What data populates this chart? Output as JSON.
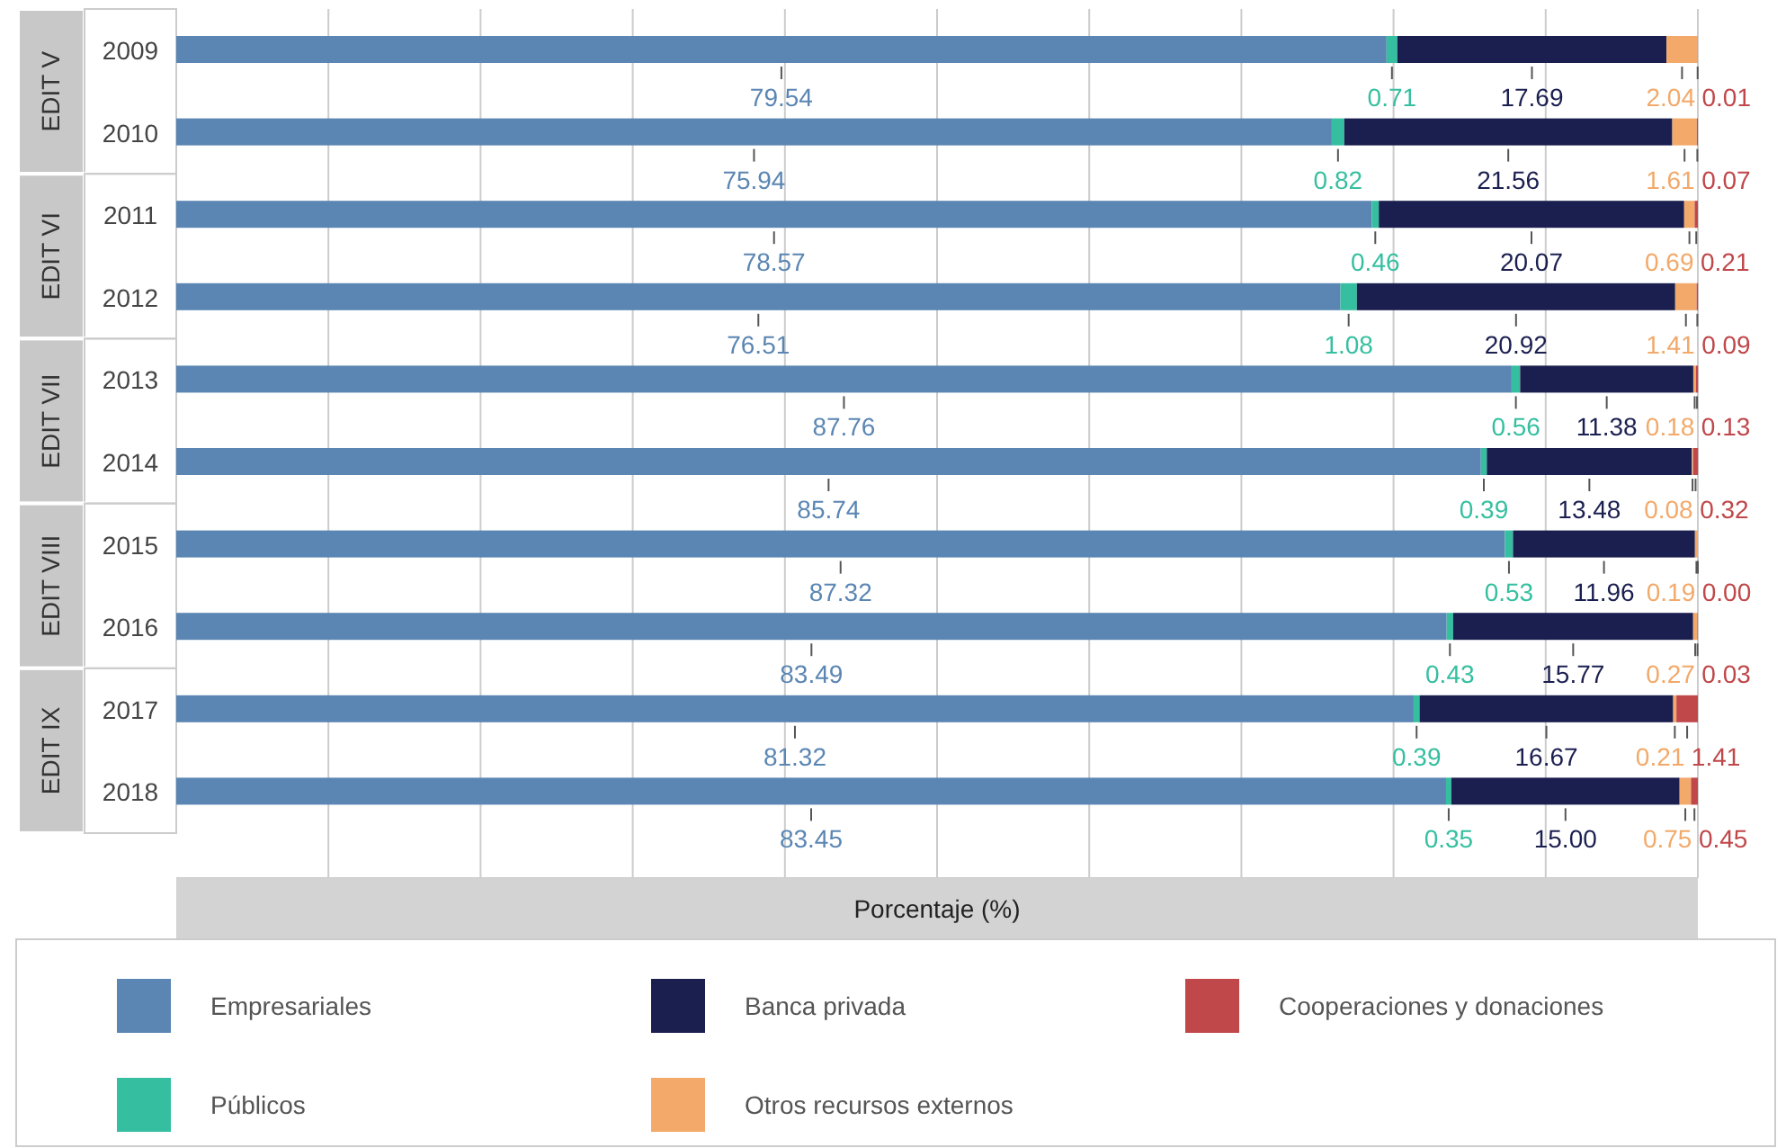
{
  "chart_data": {
    "type": "bar",
    "orientation": "horizontal",
    "stacked": true,
    "xlabel": "Porcentaje (%)",
    "categories": [
      "2009",
      "2010",
      "2011",
      "2012",
      "2013",
      "2014",
      "2015",
      "2016",
      "2017",
      "2018"
    ],
    "annotations": [
      "EDIT V",
      "EDIT VI",
      "EDIT VII",
      "EDIT VIII",
      "EDIT IX"
    ],
    "series": [
      {
        "name": "Empresariales",
        "color": "#5b86b3",
        "values": [
          79.54,
          75.94,
          78.57,
          76.51,
          87.76,
          85.74,
          87.32,
          83.49,
          81.32,
          83.45
        ],
        "value_labels": [
          "79.54",
          "75.94",
          "78.57",
          "76.51",
          "87.76",
          "85.74",
          "87.32",
          "83.49",
          "81.32",
          "83.45"
        ]
      },
      {
        "name": "Públicos",
        "color": "#35bfa0",
        "values": [
          0.71,
          0.82,
          0.46,
          1.08,
          0.56,
          0.39,
          0.53,
          0.43,
          0.39,
          0.35
        ],
        "value_labels": [
          "0.71",
          "0.82",
          "0.46",
          "1.08",
          "0.56",
          "0.39",
          "0.53",
          "0.43",
          "0.39",
          "0.35"
        ]
      },
      {
        "name": "Banca privada",
        "color": "#1b1f4f",
        "values": [
          17.69,
          21.56,
          20.07,
          20.92,
          11.38,
          13.48,
          11.96,
          15.77,
          16.67,
          15.0
        ],
        "value_labels": [
          "17.69",
          "21.56",
          "20.07",
          "20.92",
          "11.38",
          "13.48",
          "11.96",
          "15.77",
          "16.67",
          "15.00"
        ]
      },
      {
        "name": "Otros recursos externos",
        "color": "#f2a96a",
        "values": [
          2.04,
          1.61,
          0.69,
          1.41,
          0.18,
          0.08,
          0.19,
          0.27,
          0.21,
          0.75
        ],
        "value_labels": [
          "2.04",
          "1.61",
          "0.69",
          "1.41",
          "0.18",
          "0.08",
          "0.19",
          "0.27",
          "0.21",
          "0.75"
        ]
      },
      {
        "name": "Cooperaciones y donaciones",
        "color": "#c0474a",
        "values": [
          0.01,
          0.07,
          0.21,
          0.09,
          0.13,
          0.32,
          0.0,
          0.03,
          1.41,
          0.45
        ],
        "value_labels": [
          "0.01",
          "0.07",
          "0.21",
          "0.09",
          "0.13",
          "0.32",
          "0.00",
          "0.03",
          "1.41",
          "0.45"
        ]
      }
    ],
    "xlim": [
      0,
      100
    ],
    "xticks": [
      {
        "value": 10,
        "label": null
      },
      {
        "value": 20,
        "label": null
      },
      {
        "value": 30,
        "label": null
      },
      {
        "value": 40,
        "label": null
      },
      {
        "value": 50,
        "label": null
      },
      {
        "value": 60,
        "label": null
      },
      {
        "value": 70,
        "label": null
      },
      {
        "value": 80,
        "label": null
      },
      {
        "value": 90,
        "label": null
      },
      {
        "value": 100,
        "label": null
      }
    ],
    "grid": "x",
    "tick_labels": "y",
    "legend": "bottom"
  }
}
